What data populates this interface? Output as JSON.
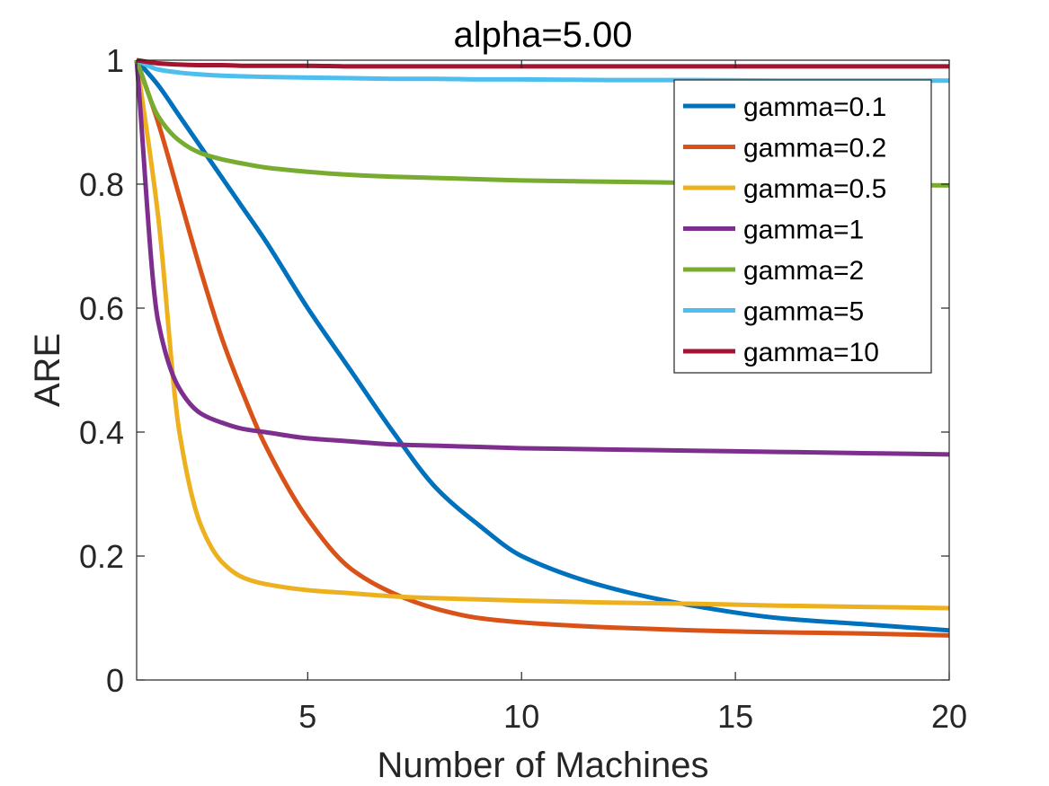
{
  "chart_data": {
    "type": "line",
    "title": "alpha=5.00",
    "xlabel": "Number of Machines",
    "ylabel": "ARE",
    "xlim": [
      1,
      20
    ],
    "ylim": [
      0,
      1
    ],
    "xticks": [
      5,
      10,
      15,
      20
    ],
    "xtick_labels": [
      "5",
      "10",
      "15",
      "20"
    ],
    "yticks": [
      0,
      0.2,
      0.4,
      0.6,
      0.8,
      1
    ],
    "ytick_labels": [
      "0",
      "0.2",
      "0.4",
      "0.6",
      "0.8",
      "1"
    ],
    "grid": false,
    "legend_position": "top-right",
    "x": [
      1,
      1.5,
      2,
      2.5,
      3,
      3.5,
      4,
      5,
      6,
      7,
      8,
      9,
      10,
      12,
      14,
      16,
      18,
      20
    ],
    "series": [
      {
        "name": "gamma=0.1",
        "color": "#0072BD",
        "values": [
          1.0,
          0.96,
          0.91,
          0.86,
          0.81,
          0.76,
          0.71,
          0.6,
          0.5,
          0.4,
          0.31,
          0.25,
          0.2,
          0.15,
          0.12,
          0.1,
          0.09,
          0.08
        ]
      },
      {
        "name": "gamma=0.2",
        "color": "#D95319",
        "values": [
          1.0,
          0.9,
          0.78,
          0.66,
          0.55,
          0.46,
          0.38,
          0.26,
          0.18,
          0.14,
          0.115,
          0.1,
          0.093,
          0.085,
          0.08,
          0.077,
          0.075,
          0.072
        ]
      },
      {
        "name": "gamma=0.5",
        "color": "#EDB120",
        "values": [
          1.0,
          0.75,
          0.4,
          0.25,
          0.19,
          0.165,
          0.155,
          0.145,
          0.14,
          0.135,
          0.132,
          0.13,
          0.128,
          0.125,
          0.123,
          0.12,
          0.118,
          0.116
        ]
      },
      {
        "name": "gamma=1",
        "color": "#7E2F8E",
        "values": [
          1.0,
          0.58,
          0.47,
          0.43,
          0.415,
          0.405,
          0.4,
          0.39,
          0.385,
          0.38,
          0.378,
          0.376,
          0.374,
          0.372,
          0.37,
          0.368,
          0.366,
          0.364
        ]
      },
      {
        "name": "gamma=2",
        "color": "#77AC30",
        "values": [
          1.0,
          0.91,
          0.87,
          0.85,
          0.84,
          0.833,
          0.827,
          0.82,
          0.815,
          0.812,
          0.81,
          0.808,
          0.806,
          0.804,
          0.802,
          0.8,
          0.799,
          0.798
        ]
      },
      {
        "name": "gamma=5",
        "color": "#4DBEEE",
        "values": [
          1.0,
          0.985,
          0.98,
          0.977,
          0.975,
          0.974,
          0.973,
          0.972,
          0.971,
          0.97,
          0.97,
          0.969,
          0.969,
          0.968,
          0.968,
          0.967,
          0.967,
          0.967
        ]
      },
      {
        "name": "gamma=10",
        "color": "#A2142F",
        "values": [
          1.0,
          0.995,
          0.993,
          0.992,
          0.992,
          0.991,
          0.991,
          0.991,
          0.99,
          0.99,
          0.99,
          0.99,
          0.99,
          0.99,
          0.99,
          0.99,
          0.99,
          0.99
        ]
      }
    ]
  }
}
